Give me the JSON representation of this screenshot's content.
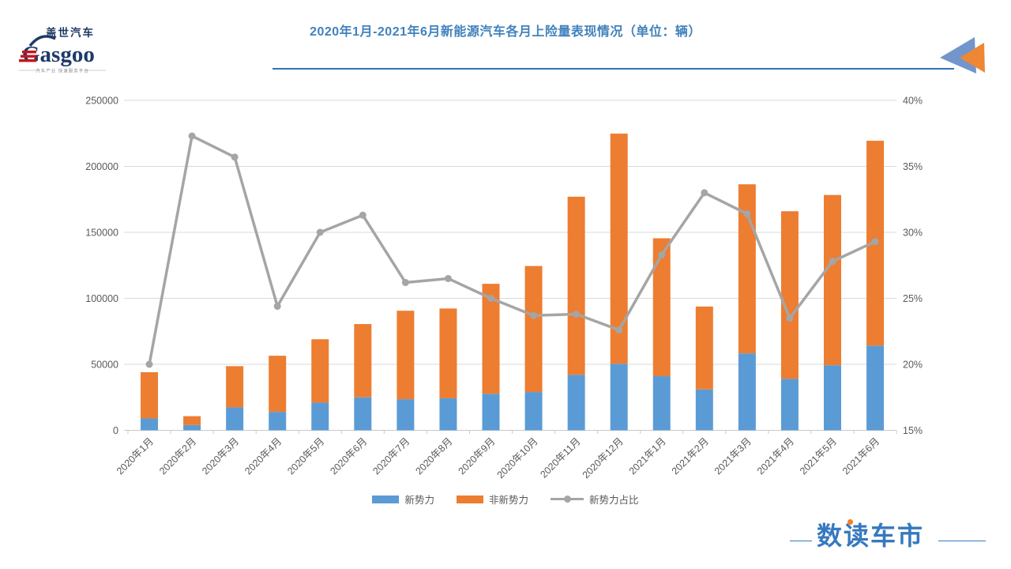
{
  "header": {
    "logo": {
      "cn": "盖世汽车",
      "en": "Gasgoo",
      "tagline": "汽车产业 快速服务平台"
    },
    "title": "2020年1月-2021年6月新能源汽车各月上险量表现情况（单位：辆）"
  },
  "footer": {
    "brand": "数读车市"
  },
  "colors": {
    "bar_new_forces": "#5B9BD5",
    "bar_non_new_forces": "#ED7D31",
    "share_line": "#A5A5A5",
    "grid": "#D9D9D9",
    "axis_text": "#595959",
    "title_blue": "#4182BC",
    "logo_navy": "#1E3A68",
    "logo_red": "#C4161C",
    "brand_blue": "#3679BE",
    "brand_orange": "#F5821F"
  },
  "chart_data": {
    "type": "bar",
    "subtype": "stacked-bar-with-line",
    "title": "2020年1月-2021年6月新能源汽车各月上险量表现情况（单位：辆）",
    "categories": [
      "2020年1月",
      "2020年2月",
      "2020年3月",
      "2020年4月",
      "2020年5月",
      "2020年6月",
      "2020年7月",
      "2020年8月",
      "2020年9月",
      "2020年10月",
      "2020年11月",
      "2020年12月",
      "2021年1月",
      "2021年2月",
      "2021年3月",
      "2021年4月",
      "2021年5月",
      "2021年6月"
    ],
    "series": [
      {
        "name": "新势力",
        "type": "bar",
        "stack": "total",
        "color": "#5B9BD5",
        "values": [
          9000,
          4000,
          17400,
          14000,
          21000,
          25000,
          23600,
          24300,
          27700,
          29000,
          42000,
          50400,
          41000,
          31000,
          58300,
          39000,
          49300,
          64200
        ]
      },
      {
        "name": "非新势力",
        "type": "bar",
        "stack": "total",
        "color": "#ED7D31",
        "values": [
          35000,
          6700,
          31200,
          42500,
          48000,
          55500,
          67000,
          68000,
          83300,
          95500,
          135000,
          174400,
          104500,
          62800,
          128100,
          127000,
          129000,
          155200
        ]
      },
      {
        "name": "新势力占比",
        "type": "line",
        "axis": "right",
        "color": "#A5A5A5",
        "values": [
          20.0,
          37.3,
          35.7,
          24.4,
          30.0,
          31.3,
          26.2,
          26.5,
          25.0,
          23.7,
          23.8,
          22.6,
          28.3,
          33.0,
          31.4,
          23.5,
          27.8,
          29.3
        ]
      }
    ],
    "left_axis": {
      "min": 0,
      "max": 250000,
      "step": 50000,
      "ticks": [
        "0",
        "50000",
        "100000",
        "150000",
        "200000",
        "250000"
      ]
    },
    "right_axis": {
      "min": 15,
      "max": 40,
      "step": 5,
      "ticks": [
        "15%",
        "20%",
        "25%",
        "30%",
        "35%",
        "40%"
      ]
    },
    "grid": true,
    "legend_position": "bottom",
    "x_label_rotation": -45
  }
}
